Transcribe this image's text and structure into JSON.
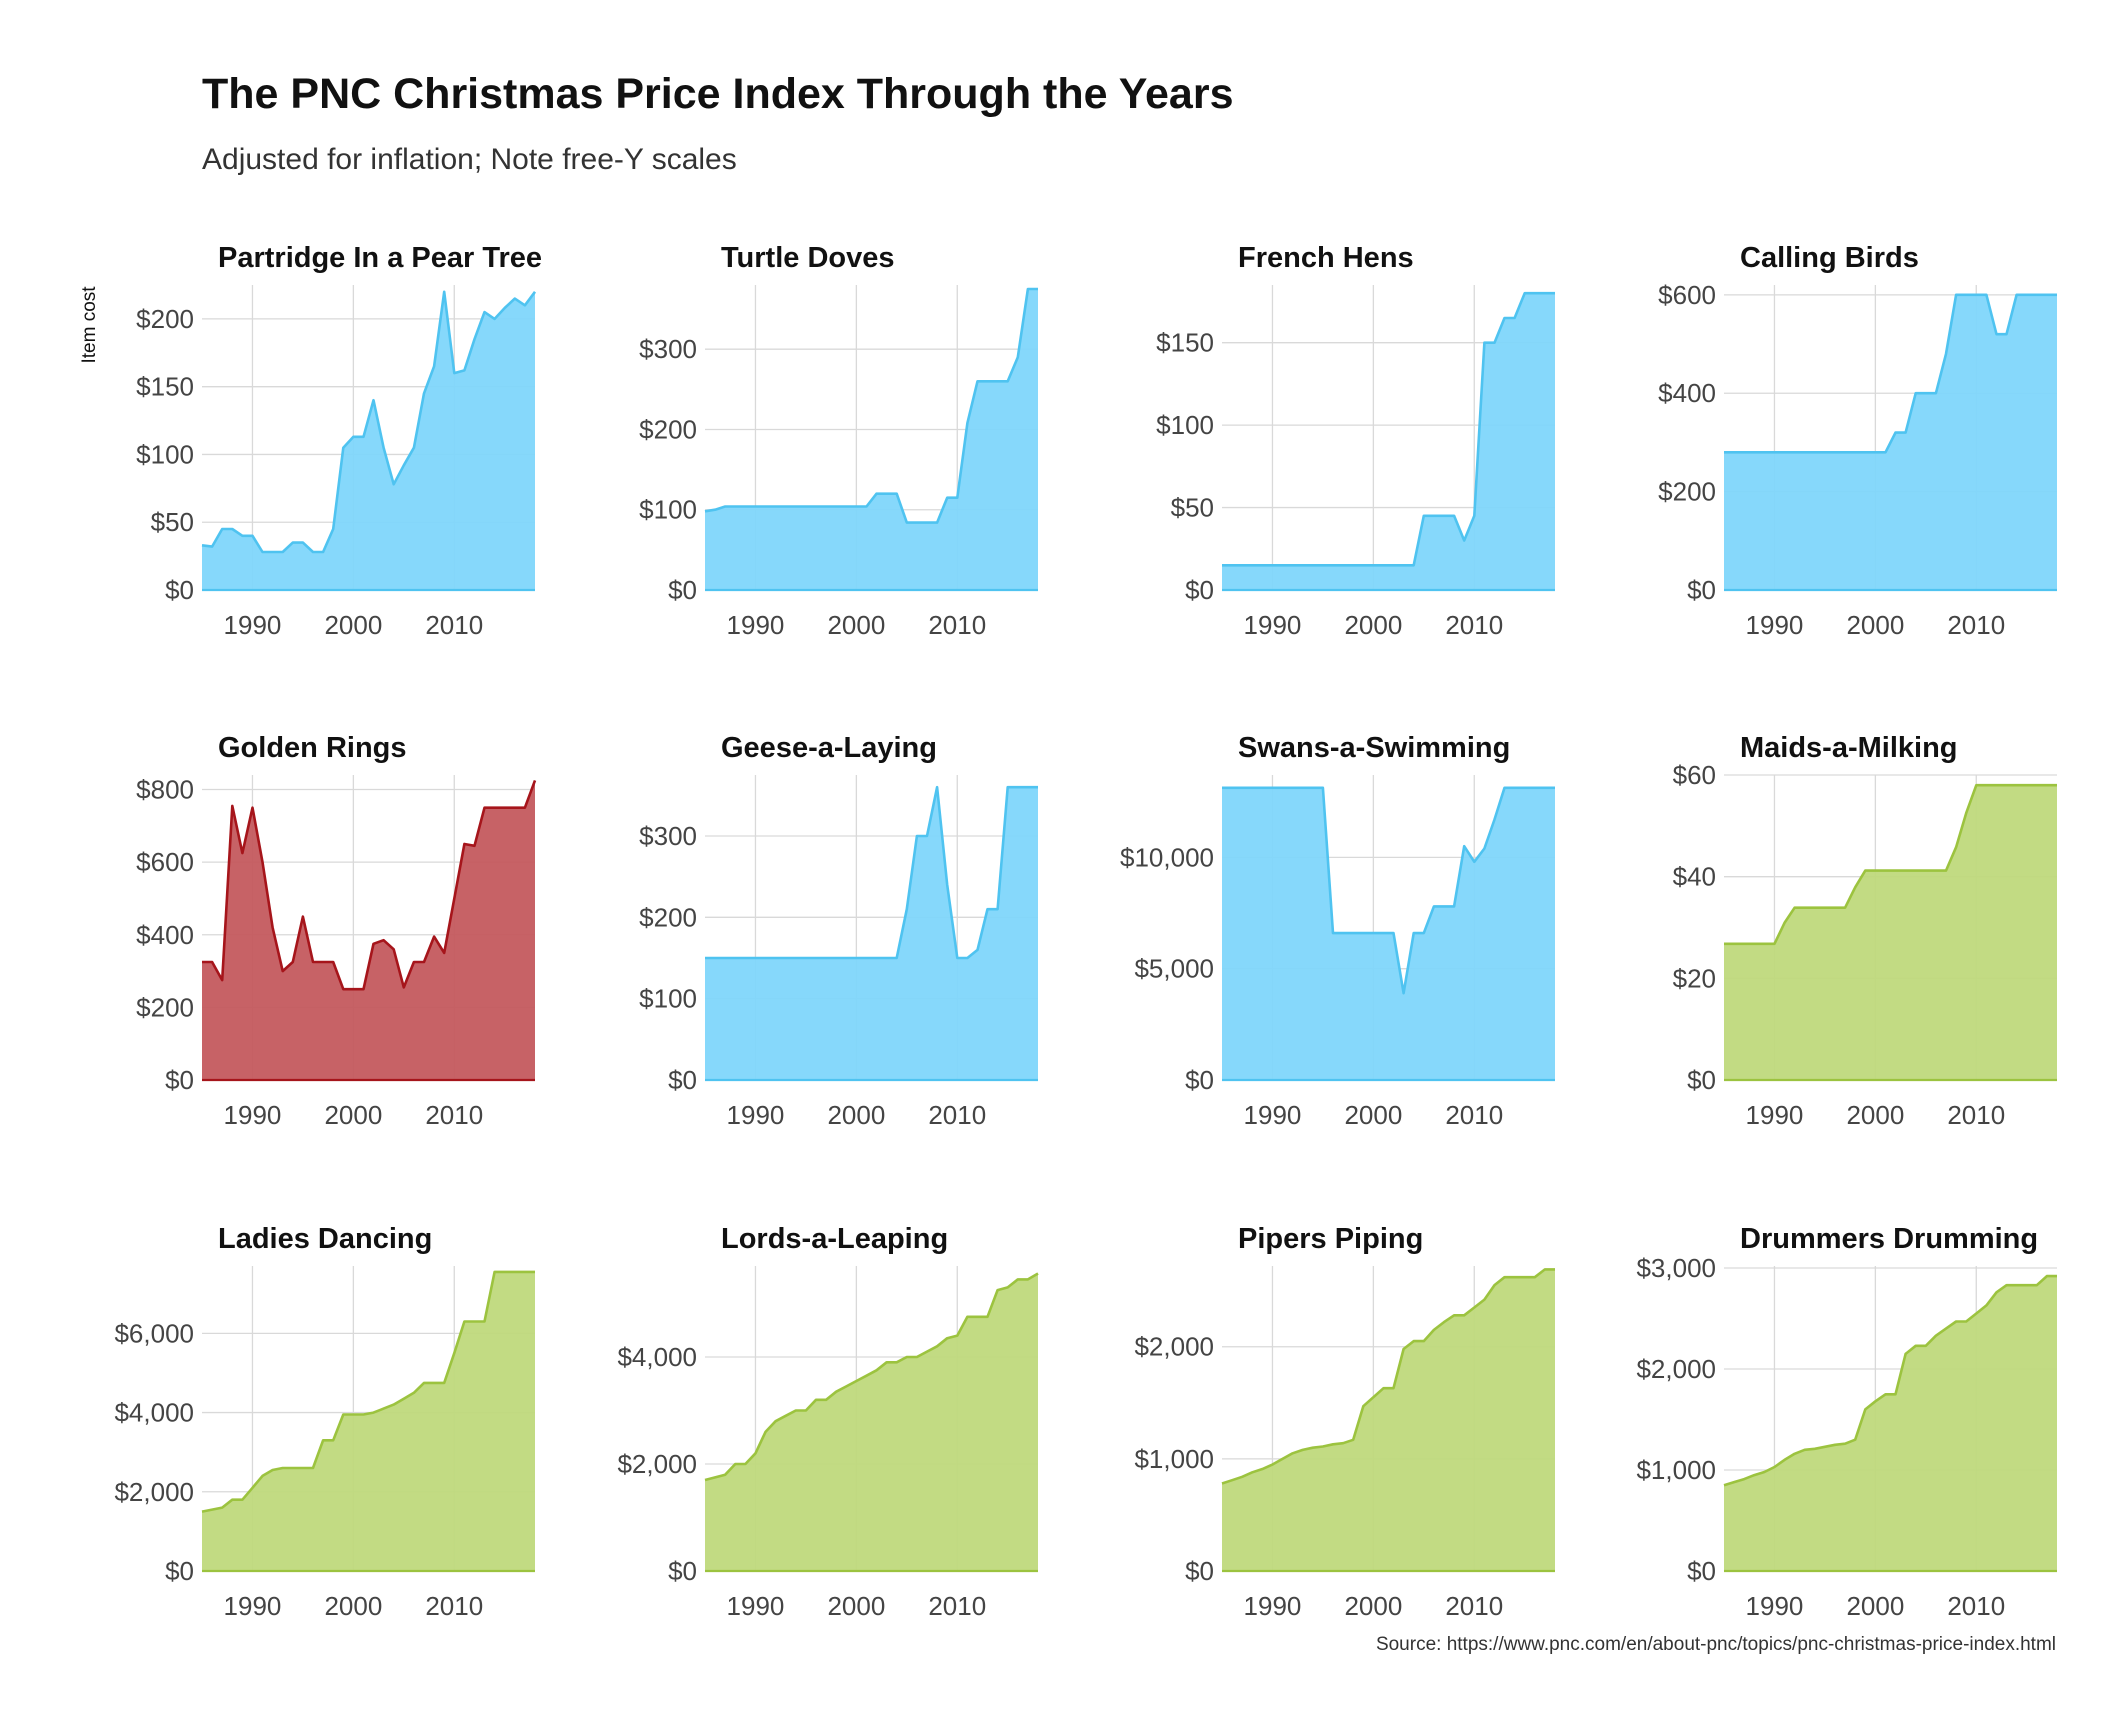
{
  "title": "The PNC Christmas Price Index Through the Years",
  "subtitle": "Adjusted for inflation; Note free-Y scales",
  "caption": "Source: https://www.pnc.com/en/about-pnc/topics/pnc-christmas-price-index.html",
  "colors": {
    "blue_fill": "#7fd6fb",
    "blue_line": "#4fc3f0",
    "red_fill": "#c45a5e",
    "red_line": "#a6151b",
    "green_fill": "#bfd97c",
    "green_line": "#9cc33f",
    "grid": "#d9d9d9"
  },
  "chart_data": {
    "type": "area",
    "facet": "free-y",
    "ylabel": "Item cost",
    "x_range": [
      1985,
      2018
    ],
    "x_ticks": [
      "1990",
      "2000",
      "2010"
    ],
    "x_tick_values": [
      1990,
      2000,
      2010
    ],
    "panels": [
      {
        "name": "Partridge In a Pear Tree",
        "color": "blue",
        "ylim": [
          0,
          225
        ],
        "y_ticks": [
          0,
          50,
          100,
          150,
          200
        ],
        "y_tick_labels": [
          "$0",
          "$50",
          "$100",
          "$150",
          "$200"
        ],
        "x": [
          1985,
          1986,
          1987,
          1988,
          1989,
          1990,
          1991,
          1992,
          1993,
          1994,
          1995,
          1996,
          1997,
          1998,
          1999,
          2000,
          2001,
          2002,
          2003,
          2004,
          2005,
          2006,
          2007,
          2008,
          2009,
          2010,
          2011,
          2012,
          2013,
          2014,
          2015,
          2016,
          2017,
          2018
        ],
        "values": [
          33,
          32,
          45,
          45,
          40,
          40,
          28,
          28,
          28,
          35,
          35,
          28,
          28,
          45,
          105,
          113,
          113,
          140,
          105,
          78,
          92,
          105,
          145,
          165,
          220,
          160,
          162,
          185,
          205,
          200,
          208,
          215,
          210,
          220
        ]
      },
      {
        "name": "Turtle Doves",
        "color": "blue",
        "ylim": [
          0,
          380
        ],
        "y_ticks": [
          0,
          100,
          200,
          300
        ],
        "y_tick_labels": [
          "$0",
          "$100",
          "$200",
          "$300"
        ],
        "x": [
          1985,
          1986,
          1987,
          1988,
          1989,
          1990,
          1991,
          1992,
          1993,
          1994,
          1995,
          1996,
          1997,
          1998,
          1999,
          2000,
          2001,
          2002,
          2003,
          2004,
          2005,
          2006,
          2007,
          2008,
          2009,
          2010,
          2011,
          2012,
          2013,
          2014,
          2015,
          2016,
          2017,
          2018
        ],
        "values": [
          98,
          100,
          104,
          104,
          104,
          104,
          104,
          104,
          104,
          104,
          104,
          104,
          104,
          104,
          104,
          104,
          104,
          120,
          120,
          120,
          84,
          84,
          84,
          84,
          115,
          115,
          208,
          260,
          260,
          260,
          260,
          290,
          375,
          375
        ]
      },
      {
        "name": "French Hens",
        "color": "blue",
        "ylim": [
          0,
          185
        ],
        "y_ticks": [
          0,
          50,
          100,
          150
        ],
        "y_tick_labels": [
          "$0",
          "$50",
          "$100",
          "$150"
        ],
        "x": [
          1985,
          1986,
          1987,
          1988,
          1989,
          1990,
          1991,
          1992,
          1993,
          1994,
          1995,
          1996,
          1997,
          1998,
          1999,
          2000,
          2001,
          2002,
          2003,
          2004,
          2005,
          2006,
          2007,
          2008,
          2009,
          2010,
          2011,
          2012,
          2013,
          2014,
          2015,
          2016,
          2017,
          2018
        ],
        "values": [
          15,
          15,
          15,
          15,
          15,
          15,
          15,
          15,
          15,
          15,
          15,
          15,
          15,
          15,
          15,
          15,
          15,
          15,
          15,
          15,
          45,
          45,
          45,
          45,
          30,
          45,
          150,
          150,
          165,
          165,
          180,
          180,
          180,
          180
        ]
      },
      {
        "name": "Calling Birds",
        "color": "blue",
        "ylim": [
          0,
          620
        ],
        "y_ticks": [
          0,
          200,
          400,
          600
        ],
        "y_tick_labels": [
          "$0",
          "$200",
          "$400",
          "$600"
        ],
        "x": [
          1985,
          1986,
          1987,
          1988,
          1989,
          1990,
          1991,
          1992,
          1993,
          1994,
          1995,
          1996,
          1997,
          1998,
          1999,
          2000,
          2001,
          2002,
          2003,
          2004,
          2005,
          2006,
          2007,
          2008,
          2009,
          2010,
          2011,
          2012,
          2013,
          2014,
          2015,
          2016,
          2017,
          2018
        ],
        "values": [
          280,
          280,
          280,
          280,
          280,
          280,
          280,
          280,
          280,
          280,
          280,
          280,
          280,
          280,
          280,
          280,
          280,
          320,
          320,
          400,
          400,
          400,
          480,
          600,
          600,
          600,
          600,
          520,
          520,
          600,
          600,
          600,
          600,
          600
        ]
      },
      {
        "name": "Golden Rings",
        "color": "red",
        "ylim": [
          0,
          840
        ],
        "y_ticks": [
          0,
          200,
          400,
          600,
          800
        ],
        "y_tick_labels": [
          "$0",
          "$200",
          "$400",
          "$600",
          "$800"
        ],
        "x": [
          1985,
          1986,
          1987,
          1988,
          1989,
          1990,
          1991,
          1992,
          1993,
          1994,
          1995,
          1996,
          1997,
          1998,
          1999,
          2000,
          2001,
          2002,
          2003,
          2004,
          2005,
          2006,
          2007,
          2008,
          2009,
          2010,
          2011,
          2012,
          2013,
          2014,
          2015,
          2016,
          2017,
          2018
        ],
        "values": [
          325,
          325,
          275,
          755,
          625,
          750,
          600,
          420,
          300,
          325,
          450,
          325,
          325,
          325,
          250,
          250,
          250,
          375,
          385,
          360,
          255,
          325,
          325,
          395,
          350,
          500,
          650,
          645,
          750,
          750,
          750,
          750,
          750,
          825
        ]
      },
      {
        "name": "Geese-a-Laying",
        "color": "blue",
        "ylim": [
          0,
          375
        ],
        "y_ticks": [
          0,
          100,
          200,
          300
        ],
        "y_tick_labels": [
          "$0",
          "$100",
          "$200",
          "$300"
        ],
        "x": [
          1985,
          1986,
          1987,
          1988,
          1989,
          1990,
          1991,
          1992,
          1993,
          1994,
          1995,
          1996,
          1997,
          1998,
          1999,
          2000,
          2001,
          2002,
          2003,
          2004,
          2005,
          2006,
          2007,
          2008,
          2009,
          2010,
          2011,
          2012,
          2013,
          2014,
          2015,
          2016,
          2017,
          2018
        ],
        "values": [
          150,
          150,
          150,
          150,
          150,
          150,
          150,
          150,
          150,
          150,
          150,
          150,
          150,
          150,
          150,
          150,
          150,
          150,
          150,
          150,
          210,
          300,
          300,
          360,
          240,
          150,
          150,
          160,
          210,
          210,
          360,
          360,
          360,
          360
        ]
      },
      {
        "name": "Swans-a-Swimming",
        "color": "blue",
        "ylim": [
          0,
          13700
        ],
        "y_ticks": [
          0,
          5000,
          10000
        ],
        "y_tick_labels": [
          "$0",
          "$5,000",
          "$10,000"
        ],
        "x": [
          1985,
          1986,
          1987,
          1988,
          1989,
          1990,
          1991,
          1992,
          1993,
          1994,
          1995,
          1996,
          1997,
          1998,
          1999,
          2000,
          2001,
          2002,
          2003,
          2004,
          2005,
          2006,
          2007,
          2008,
          2009,
          2010,
          2011,
          2012,
          2013,
          2014,
          2015,
          2016,
          2017,
          2018
        ],
        "values": [
          13125,
          13125,
          13125,
          13125,
          13125,
          13125,
          13125,
          13125,
          13125,
          13125,
          13125,
          6600,
          6600,
          6600,
          6600,
          6600,
          6600,
          6600,
          3900,
          6600,
          6600,
          7800,
          7800,
          7800,
          10500,
          9800,
          10400,
          11700,
          13125,
          13125,
          13125,
          13125,
          13125,
          13125
        ]
      },
      {
        "name": "Maids-a-Milking",
        "color": "green",
        "ylim": [
          0,
          60
        ],
        "y_ticks": [
          0,
          20,
          40,
          60
        ],
        "y_tick_labels": [
          "$0",
          "$20",
          "$40",
          "$60"
        ],
        "x": [
          1985,
          1986,
          1987,
          1988,
          1989,
          1990,
          1991,
          1992,
          1993,
          1994,
          1995,
          1996,
          1997,
          1998,
          1999,
          2000,
          2001,
          2002,
          2003,
          2004,
          2005,
          2006,
          2007,
          2008,
          2009,
          2010,
          2011,
          2012,
          2013,
          2014,
          2015,
          2016,
          2017,
          2018
        ],
        "values": [
          26.8,
          26.8,
          26.8,
          26.8,
          26.8,
          26.8,
          30.9,
          33.9,
          33.9,
          33.9,
          33.9,
          33.9,
          33.9,
          37.9,
          41.2,
          41.2,
          41.2,
          41.2,
          41.2,
          41.2,
          41.2,
          41.2,
          41.2,
          45.8,
          52.5,
          58.0,
          58.0,
          58.0,
          58.0,
          58.0,
          58.0,
          58.0,
          58.0,
          58.0
        ]
      },
      {
        "name": "Ladies Dancing",
        "color": "green",
        "ylim": [
          0,
          7700
        ],
        "y_ticks": [
          0,
          2000,
          4000,
          6000
        ],
        "y_tick_labels": [
          "$0",
          "$2,000",
          "$4,000",
          "$6,000"
        ],
        "x": [
          1985,
          1986,
          1987,
          1988,
          1989,
          1990,
          1991,
          1992,
          1993,
          1994,
          1995,
          1996,
          1997,
          1998,
          1999,
          2000,
          2001,
          2002,
          2003,
          2004,
          2005,
          2006,
          2007,
          2008,
          2009,
          2010,
          2011,
          2012,
          2013,
          2014,
          2015,
          2016,
          2017,
          2018
        ],
        "values": [
          1500,
          1550,
          1600,
          1800,
          1800,
          2100,
          2400,
          2550,
          2600,
          2600,
          2600,
          2600,
          3300,
          3300,
          3950,
          3950,
          3950,
          4000,
          4100,
          4200,
          4350,
          4500,
          4750,
          4750,
          4750,
          5500,
          6300,
          6300,
          6300,
          7550,
          7550,
          7550,
          7550,
          7550
        ]
      },
      {
        "name": "Lords-a-Leaping",
        "color": "green",
        "ylim": [
          0,
          5700
        ],
        "y_ticks": [
          0,
          2000,
          4000
        ],
        "y_tick_labels": [
          "$0",
          "$2,000",
          "$4,000"
        ],
        "x": [
          1985,
          1986,
          1987,
          1988,
          1989,
          1990,
          1991,
          1992,
          1993,
          1994,
          1995,
          1996,
          1997,
          1998,
          1999,
          2000,
          2001,
          2002,
          2003,
          2004,
          2005,
          2006,
          2007,
          2008,
          2009,
          2010,
          2011,
          2012,
          2013,
          2014,
          2015,
          2016,
          2017,
          2018
        ],
        "values": [
          1700,
          1750,
          1800,
          2000,
          2000,
          2200,
          2600,
          2800,
          2900,
          3000,
          3000,
          3200,
          3200,
          3350,
          3450,
          3550,
          3650,
          3750,
          3900,
          3900,
          4000,
          4000,
          4100,
          4200,
          4350,
          4400,
          4750,
          4750,
          4750,
          5250,
          5300,
          5450,
          5450,
          5560
        ]
      },
      {
        "name": "Pipers Piping",
        "color": "green",
        "ylim": [
          0,
          2720
        ],
        "y_ticks": [
          0,
          1000,
          2000
        ],
        "y_tick_labels": [
          "$0",
          "$1,000",
          "$2,000"
        ],
        "x": [
          1985,
          1986,
          1987,
          1988,
          1989,
          1990,
          1991,
          1992,
          1993,
          1994,
          1995,
          1996,
          1997,
          1998,
          1999,
          2000,
          2001,
          2002,
          2003,
          2004,
          2005,
          2006,
          2007,
          2008,
          2009,
          2010,
          2011,
          2012,
          2013,
          2014,
          2015,
          2016,
          2017,
          2018
        ],
        "values": [
          780,
          810,
          840,
          880,
          910,
          950,
          1000,
          1050,
          1080,
          1100,
          1110,
          1130,
          1140,
          1170,
          1470,
          1550,
          1630,
          1630,
          1980,
          2050,
          2050,
          2150,
          2220,
          2280,
          2280,
          2350,
          2420,
          2550,
          2620,
          2620,
          2620,
          2620,
          2690,
          2690
        ]
      },
      {
        "name": "Drummers Drumming",
        "color": "green",
        "ylim": [
          0,
          3020
        ],
        "y_ticks": [
          0,
          1000,
          2000,
          3000
        ],
        "y_tick_labels": [
          "$0",
          "$1,000",
          "$2,000",
          "$3,000"
        ],
        "x": [
          1985,
          1986,
          1987,
          1988,
          1989,
          1990,
          1991,
          1992,
          1993,
          1994,
          1995,
          1996,
          1997,
          1998,
          1999,
          2000,
          2001,
          2002,
          2003,
          2004,
          2005,
          2006,
          2007,
          2008,
          2009,
          2010,
          2011,
          2012,
          2013,
          2014,
          2015,
          2016,
          2017,
          2018
        ],
        "values": [
          850,
          880,
          910,
          950,
          980,
          1030,
          1100,
          1160,
          1200,
          1210,
          1230,
          1250,
          1260,
          1300,
          1600,
          1680,
          1750,
          1750,
          2150,
          2230,
          2230,
          2330,
          2400,
          2470,
          2470,
          2550,
          2630,
          2760,
          2830,
          2830,
          2830,
          2830,
          2920,
          2920
        ]
      }
    ]
  }
}
